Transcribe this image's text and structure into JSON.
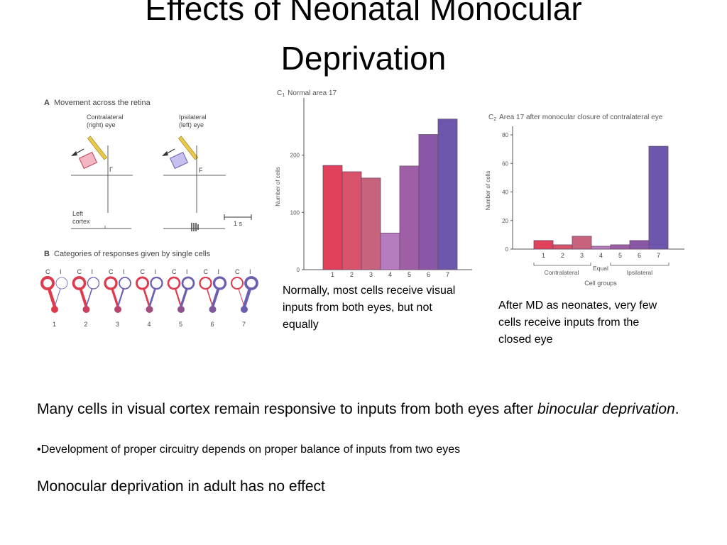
{
  "slide": {
    "title_line1": "Effects of Neonatal Monocular",
    "title_line2": "Deprivation",
    "caption_normal": "Normally, most cells receive visual inputs from both eyes, but not equally",
    "caption_md": "After MD as neonates, very few cells receive inputs from the closed eye",
    "para1_plain": "Many cells in visual cortex remain responsive to inputs from both eyes after ",
    "para1_italic": "binocular deprivation",
    "para1_end": ".",
    "bullet": "•Development of proper circuitry depends on proper balance of inputs from two eyes",
    "para2": "Monocular deprivation in adult has no effect"
  },
  "figure_a": {
    "panel_label": "A",
    "title": "Movement across the retina",
    "contra_label_1": "Contralateral",
    "contra_label_2": "(right) eye",
    "ipsi_label_1": "Ipsilateral",
    "ipsi_label_2": "(left) eye",
    "cortex_label_1": "Left",
    "cortex_label_2": "cortex",
    "contra_marker": "Γ",
    "ipsi_marker": "F",
    "scale_label": "1 s"
  },
  "figure_b": {
    "panel_label": "B",
    "title": "Categories of responses given by single cells",
    "eye_labels": [
      "C",
      "I"
    ],
    "groups": [
      "1",
      "2",
      "3",
      "4",
      "5",
      "6",
      "7"
    ]
  },
  "colors": {
    "contra_red": "#e03a4e",
    "ipsi_blue": "#6a5fb0",
    "stimulus_yellow": "#e8c84a"
  },
  "chart_data": [
    {
      "type": "bar",
      "panel_label": "C",
      "panel_sub": "1",
      "title": "Normal area 17",
      "categories": [
        "1",
        "2",
        "3",
        "4",
        "5",
        "6",
        "7"
      ],
      "values": [
        182,
        171,
        160,
        64,
        181,
        236,
        263
      ],
      "ylabel": "Number of cells",
      "xlabel": "",
      "ylim": [
        0,
        290
      ],
      "yticks": [
        0,
        100,
        200
      ],
      "colors": [
        "#e0405a",
        "#d8526a",
        "#c8637e",
        "#b67cbf",
        "#9f5fa6",
        "#8a56a6",
        "#6c57ac"
      ]
    },
    {
      "type": "bar",
      "panel_label": "C",
      "panel_sub": "2",
      "title": "Area 17 after monocular closure of contralateral eye",
      "categories": [
        "1",
        "2",
        "3",
        "4",
        "5",
        "6",
        "7"
      ],
      "values": [
        6,
        3,
        9,
        2,
        3,
        6,
        72
      ],
      "ylabel": "Number of cells",
      "xlabel": "Cell groups",
      "ylim": [
        0,
        82
      ],
      "yticks": [
        0,
        20,
        40,
        60,
        80
      ],
      "group_labels": [
        "Contralateral",
        "Equal",
        "Ipsilateral"
      ],
      "colors": [
        "#e0405a",
        "#d8526a",
        "#c8637e",
        "#b67cbf",
        "#9f5fa6",
        "#8a56a6",
        "#6c57ac"
      ]
    }
  ]
}
